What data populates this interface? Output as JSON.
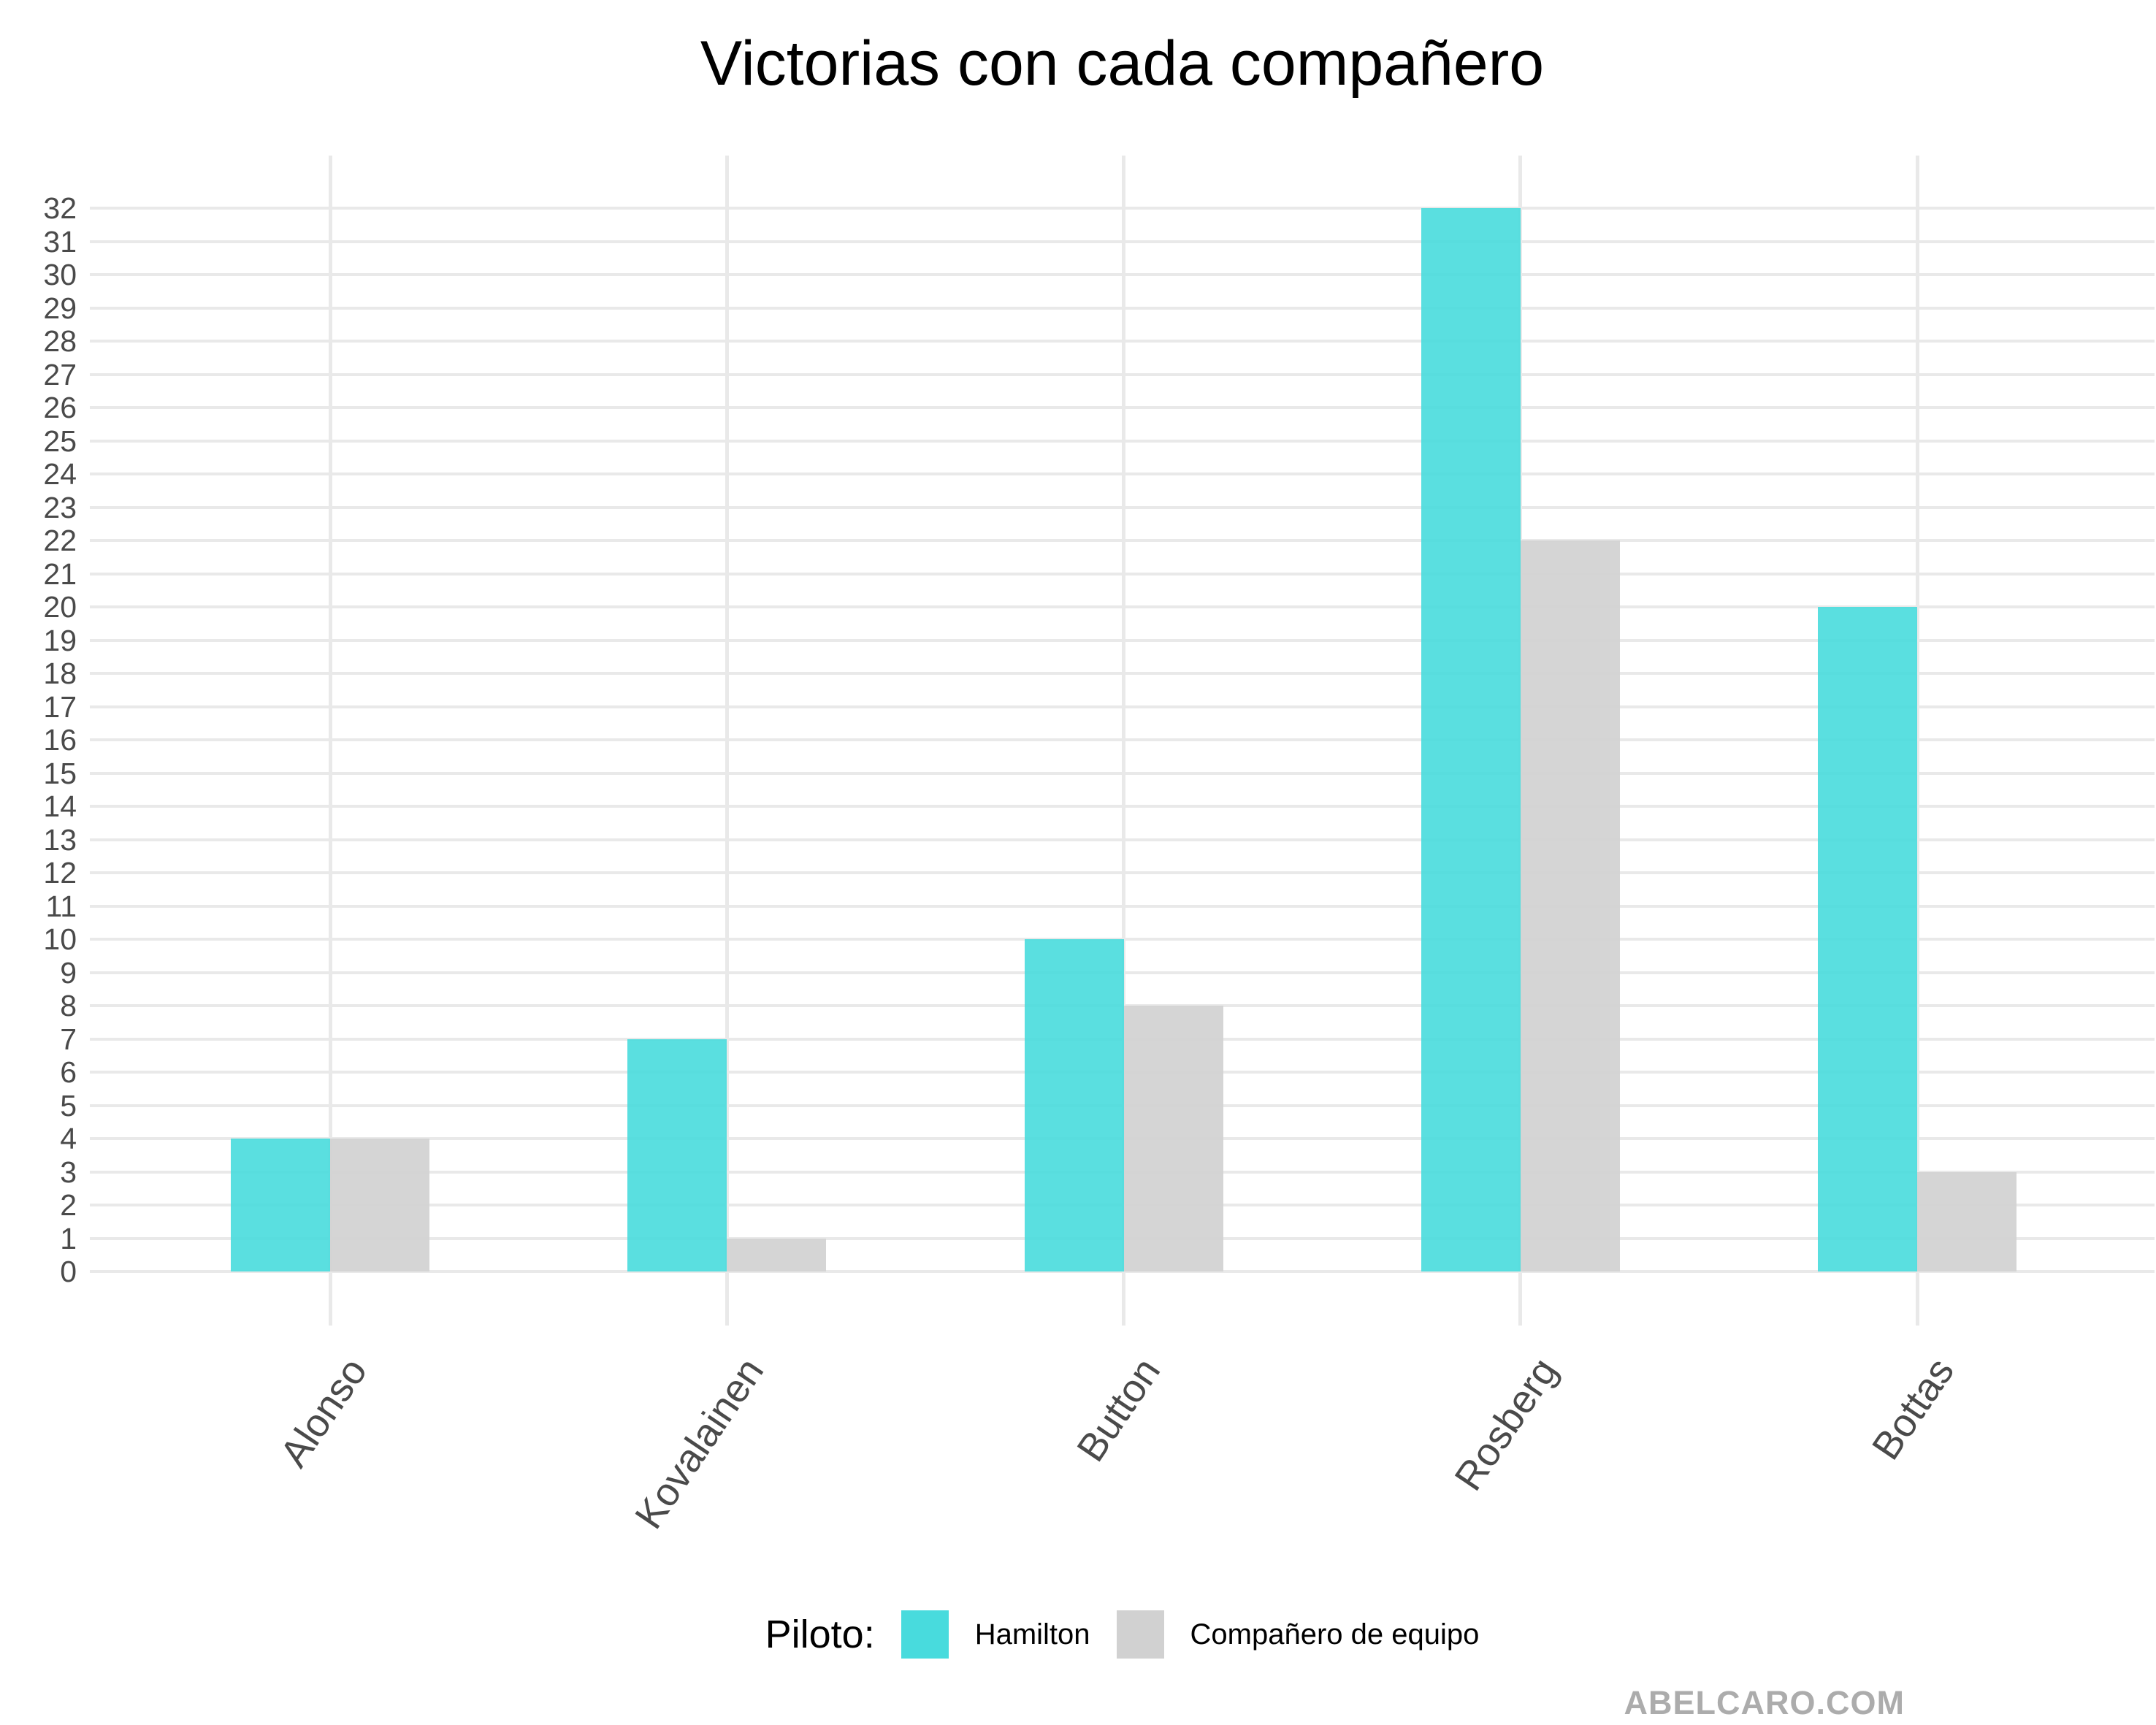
{
  "title": "Victorias con cada compañero",
  "watermark": "ABELCARO.COM",
  "legend": {
    "title": "Piloto:",
    "items": [
      {
        "label": "Hamilton",
        "color": "#48dbdd"
      },
      {
        "label": "Compañero de equipo",
        "color": "#d1d1d1"
      }
    ]
  },
  "chart_data": {
    "type": "bar",
    "title": "Victorias con cada compañero",
    "categories": [
      "Alonso",
      "Kovalainen",
      "Button",
      "Rosberg",
      "Bottas"
    ],
    "series": [
      {
        "name": "Hamilton",
        "color": "#48dbdd",
        "alpha": 0.9,
        "values": [
          4,
          7,
          10,
          32,
          20
        ]
      },
      {
        "name": "Compañero de equipo",
        "color": "#d1d1d1",
        "alpha": 0.92,
        "values": [
          4,
          1,
          8,
          22,
          3
        ]
      }
    ],
    "xlabel": "",
    "ylabel": "",
    "ylim": [
      0,
      32
    ],
    "ytick_step": 1,
    "grid": true,
    "grid_color": "#e9e9e9",
    "axis_text_color": "#4a4a4a",
    "legend_title": "Piloto:",
    "legend_position": "bottom",
    "x_tick_angle_deg": 56
  }
}
